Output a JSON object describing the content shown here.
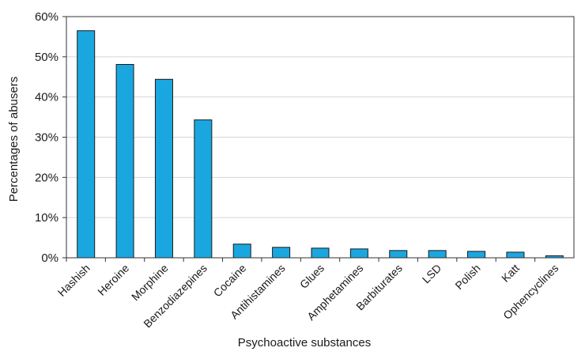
{
  "chart_data": {
    "type": "bar",
    "title": "",
    "xlabel": "Psychoactive substances",
    "ylabel": "Percentages of abusers",
    "ylim": [
      0,
      60
    ],
    "yticks": [
      "0%",
      "10%",
      "20%",
      "30%",
      "40%",
      "50%",
      "60%"
    ],
    "grid": true,
    "bar_color": "#1aa7e0",
    "categories": [
      "Hashish",
      "Heroine",
      "Morphine",
      "Benzodiazepines",
      "Cocaine",
      "Antihistamines",
      "Glues",
      "Amphetamines",
      "Barbiturates",
      "LSD",
      "Polish",
      "Katt",
      "Ophencyclines"
    ],
    "values": [
      56.5,
      48.1,
      44.4,
      34.3,
      3.4,
      2.6,
      2.4,
      2.2,
      1.8,
      1.8,
      1.6,
      1.4,
      0.5
    ]
  }
}
